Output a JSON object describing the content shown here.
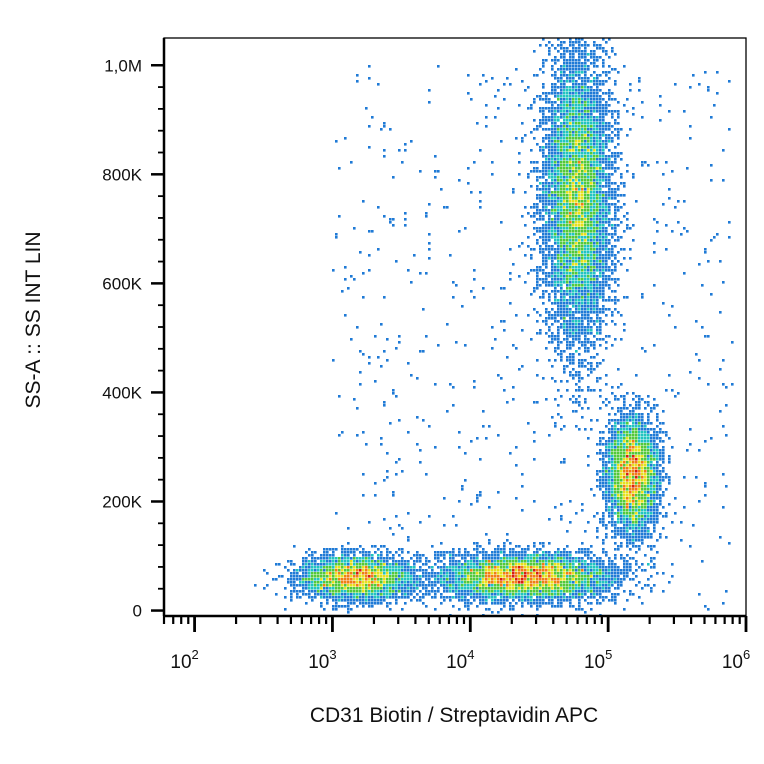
{
  "chart_data": {
    "type": "scatter",
    "title": "",
    "xlabel": "CD31 Biotin / Streptavidin APC",
    "ylabel": "SS-A :: SS INT LIN",
    "x_scale": "log",
    "x_range": [
      60,
      1000000
    ],
    "y_range": [
      -10000,
      1050000
    ],
    "x_ticks": [
      {
        "value": 100,
        "base": "10",
        "exp": "2"
      },
      {
        "value": 1000,
        "base": "10",
        "exp": "3"
      },
      {
        "value": 10000,
        "base": "10",
        "exp": "4"
      },
      {
        "value": 100000,
        "base": "10",
        "exp": "5"
      },
      {
        "value": 1000000,
        "base": "10",
        "exp": "6"
      }
    ],
    "y_ticks": [
      {
        "value": 0,
        "label": "0"
      },
      {
        "value": 200000,
        "label": "200K"
      },
      {
        "value": 400000,
        "label": "400K"
      },
      {
        "value": 600000,
        "label": "600K"
      },
      {
        "value": 800000,
        "label": "800K"
      },
      {
        "value": 1000000,
        "label": "1,0M"
      }
    ],
    "grid": false,
    "legend": "none",
    "density_colors": [
      "#1a22c8",
      "#1f7ad6",
      "#21c4c0",
      "#52c93a",
      "#e6e01c",
      "#f07d15",
      "#d81e10"
    ],
    "populations": [
      {
        "x_center": 1500,
        "y_center": 60000,
        "x_spread_log": 0.2,
        "y_spread": 20000,
        "density": 0.45
      },
      {
        "x_center": 25000,
        "y_center": 62000,
        "x_spread_log": 0.3,
        "y_spread": 20000,
        "density": 0.75
      },
      {
        "x_center": 60000,
        "y_center": 760000,
        "x_spread_log": 0.12,
        "y_spread": 130000,
        "density": 1.0
      },
      {
        "x_center": 150000,
        "y_center": 250000,
        "x_spread_log": 0.09,
        "y_spread": 50000,
        "density": 0.55
      }
    ]
  }
}
